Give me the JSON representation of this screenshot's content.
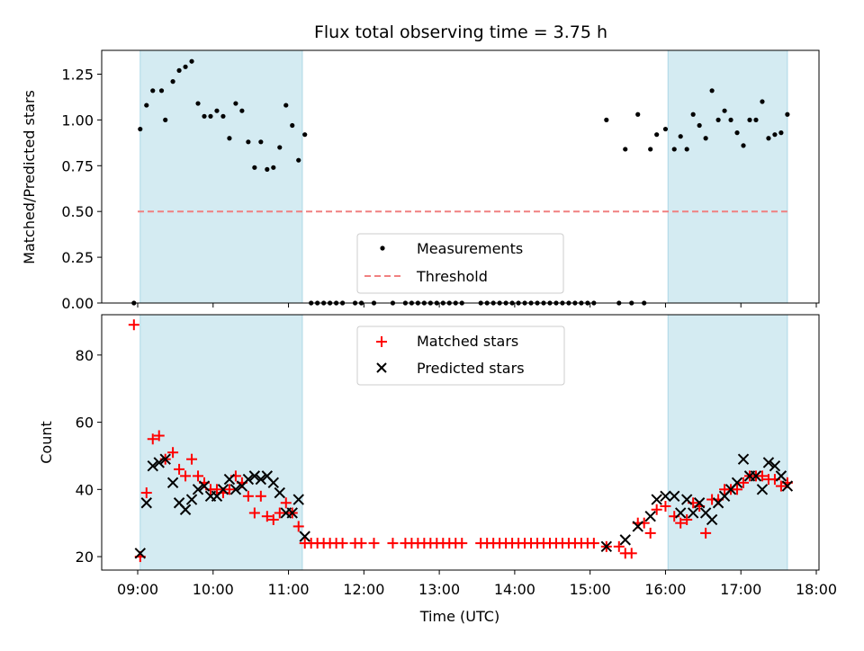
{
  "chart_data": [
    {
      "type": "scatter",
      "title": "Flux total observing time = 3.75 h",
      "ylabel": "Matched/Predicted stars",
      "xlabel": "",
      "xlim": [
        "08:45",
        "18:00"
      ],
      "ylim": [
        0,
        1.38
      ],
      "yticks": [
        "0.00",
        "0.25",
        "0.50",
        "0.75",
        "1.00",
        "1.25"
      ],
      "shaded_intervals": [
        [
          "09:02",
          "11:11"
        ],
        [
          "16:02",
          "17:37"
        ]
      ],
      "shade_color": "#add8e6",
      "threshold": 0.5,
      "series": [
        {
          "name": "Measurements",
          "marker": "dot",
          "color": "#000000",
          "points": [
            [
              "08:57",
              0.0
            ],
            [
              "09:02",
              0.95
            ],
            [
              "09:07",
              1.08
            ],
            [
              "09:12",
              1.16
            ],
            [
              "09:19",
              1.16
            ],
            [
              "09:22",
              1.0
            ],
            [
              "09:28",
              1.21
            ],
            [
              "09:33",
              1.27
            ],
            [
              "09:38",
              1.29
            ],
            [
              "09:43",
              1.32
            ],
            [
              "09:48",
              1.09
            ],
            [
              "09:53",
              1.02
            ],
            [
              "09:58",
              1.02
            ],
            [
              "10:03",
              1.05
            ],
            [
              "10:08",
              1.02
            ],
            [
              "10:13",
              0.9
            ],
            [
              "10:18",
              1.09
            ],
            [
              "10:23",
              1.05
            ],
            [
              "10:28",
              0.88
            ],
            [
              "10:33",
              0.74
            ],
            [
              "10:38",
              0.88
            ],
            [
              "10:43",
              0.73
            ],
            [
              "10:48",
              0.74
            ],
            [
              "10:53",
              0.85
            ],
            [
              "10:58",
              1.08
            ],
            [
              "11:03",
              0.97
            ],
            [
              "11:08",
              0.78
            ],
            [
              "11:13",
              0.92
            ],
            [
              "11:18",
              0.0
            ],
            [
              "11:23",
              0.0
            ],
            [
              "11:28",
              0.0
            ],
            [
              "11:33",
              0.0
            ],
            [
              "11:38",
              0.0
            ],
            [
              "11:43",
              0.0
            ],
            [
              "11:53",
              0.0
            ],
            [
              "11:58",
              0.0
            ],
            [
              "12:08",
              0.0
            ],
            [
              "12:23",
              0.0
            ],
            [
              "12:33",
              0.0
            ],
            [
              "12:38",
              0.0
            ],
            [
              "12:43",
              0.0
            ],
            [
              "12:48",
              0.0
            ],
            [
              "12:53",
              0.0
            ],
            [
              "12:58",
              0.0
            ],
            [
              "13:03",
              0.0
            ],
            [
              "13:08",
              0.0
            ],
            [
              "13:13",
              0.0
            ],
            [
              "13:18",
              0.0
            ],
            [
              "13:33",
              0.0
            ],
            [
              "13:38",
              0.0
            ],
            [
              "13:43",
              0.0
            ],
            [
              "13:48",
              0.0
            ],
            [
              "13:53",
              0.0
            ],
            [
              "13:58",
              0.0
            ],
            [
              "14:03",
              0.0
            ],
            [
              "14:08",
              0.0
            ],
            [
              "14:13",
              0.0
            ],
            [
              "14:18",
              0.0
            ],
            [
              "14:23",
              0.0
            ],
            [
              "14:28",
              0.0
            ],
            [
              "14:33",
              0.0
            ],
            [
              "14:38",
              0.0
            ],
            [
              "14:43",
              0.0
            ],
            [
              "14:48",
              0.0
            ],
            [
              "14:53",
              0.0
            ],
            [
              "14:58",
              0.0
            ],
            [
              "15:03",
              0.0
            ],
            [
              "15:13",
              1.0
            ],
            [
              "15:23",
              0.0
            ],
            [
              "15:28",
              0.84
            ],
            [
              "15:33",
              0.0
            ],
            [
              "15:38",
              1.03
            ],
            [
              "15:43",
              0.0
            ],
            [
              "15:48",
              0.84
            ],
            [
              "15:53",
              0.92
            ],
            [
              "16:00",
              0.95
            ],
            [
              "16:07",
              0.84
            ],
            [
              "16:12",
              0.91
            ],
            [
              "16:17",
              0.84
            ],
            [
              "16:22",
              1.03
            ],
            [
              "16:27",
              0.97
            ],
            [
              "16:32",
              0.9
            ],
            [
              "16:37",
              1.16
            ],
            [
              "16:42",
              1.0
            ],
            [
              "16:47",
              1.05
            ],
            [
              "16:52",
              1.0
            ],
            [
              "16:57",
              0.93
            ],
            [
              "17:02",
              0.86
            ],
            [
              "17:07",
              1.0
            ],
            [
              "17:12",
              1.0
            ],
            [
              "17:17",
              1.1
            ],
            [
              "17:22",
              0.9
            ],
            [
              "17:27",
              0.92
            ],
            [
              "17:32",
              0.93
            ],
            [
              "17:37",
              1.03
            ]
          ]
        },
        {
          "name": "Threshold",
          "marker": "dashed-line",
          "color": "#f08080"
        }
      ],
      "legend": "lower center"
    },
    {
      "type": "scatter",
      "title": "",
      "ylabel": "Count",
      "xlabel": "Time (UTC)",
      "xlim": [
        "08:45",
        "18:00"
      ],
      "ylim": [
        16,
        92
      ],
      "yticks": [
        "20",
        "40",
        "60",
        "80"
      ],
      "xticks": [
        "09:00",
        "10:00",
        "11:00",
        "12:00",
        "13:00",
        "14:00",
        "15:00",
        "16:00",
        "17:00",
        "18:00"
      ],
      "shaded_intervals": [
        [
          "09:02",
          "11:11"
        ],
        [
          "16:02",
          "17:37"
        ]
      ],
      "shade_color": "#add8e6",
      "series": [
        {
          "name": "Matched stars",
          "marker": "plus",
          "color": "#ff0000",
          "points": [
            [
              "08:57",
              89
            ],
            [
              "09:02",
              20
            ],
            [
              "09:07",
              39
            ],
            [
              "09:12",
              55
            ],
            [
              "09:17",
              56
            ],
            [
              "09:22",
              49
            ],
            [
              "09:28",
              51
            ],
            [
              "09:33",
              46
            ],
            [
              "09:38",
              44
            ],
            [
              "09:43",
              49
            ],
            [
              "09:48",
              44
            ],
            [
              "09:53",
              42
            ],
            [
              "09:58",
              40
            ],
            [
              "10:03",
              40
            ],
            [
              "10:08",
              39
            ],
            [
              "10:13",
              40
            ],
            [
              "10:18",
              44
            ],
            [
              "10:23",
              42
            ],
            [
              "10:28",
              38
            ],
            [
              "10:33",
              33
            ],
            [
              "10:38",
              38
            ],
            [
              "10:43",
              32
            ],
            [
              "10:48",
              31
            ],
            [
              "10:53",
              33
            ],
            [
              "10:58",
              36
            ],
            [
              "11:03",
              33
            ],
            [
              "11:08",
              29
            ],
            [
              "11:13",
              24
            ],
            [
              "11:18",
              24
            ],
            [
              "11:23",
              24
            ],
            [
              "11:28",
              24
            ],
            [
              "11:33",
              24
            ],
            [
              "11:38",
              24
            ],
            [
              "11:43",
              24
            ],
            [
              "11:53",
              24
            ],
            [
              "11:58",
              24
            ],
            [
              "12:08",
              24
            ],
            [
              "12:23",
              24
            ],
            [
              "12:33",
              24
            ],
            [
              "12:38",
              24
            ],
            [
              "12:43",
              24
            ],
            [
              "12:48",
              24
            ],
            [
              "12:53",
              24
            ],
            [
              "12:58",
              24
            ],
            [
              "13:03",
              24
            ],
            [
              "13:08",
              24
            ],
            [
              "13:13",
              24
            ],
            [
              "13:18",
              24
            ],
            [
              "13:33",
              24
            ],
            [
              "13:38",
              24
            ],
            [
              "13:43",
              24
            ],
            [
              "13:48",
              24
            ],
            [
              "13:53",
              24
            ],
            [
              "13:58",
              24
            ],
            [
              "14:03",
              24
            ],
            [
              "14:08",
              24
            ],
            [
              "14:13",
              24
            ],
            [
              "14:18",
              24
            ],
            [
              "14:23",
              24
            ],
            [
              "14:28",
              24
            ],
            [
              "14:33",
              24
            ],
            [
              "14:38",
              24
            ],
            [
              "14:43",
              24
            ],
            [
              "14:48",
              24
            ],
            [
              "14:53",
              24
            ],
            [
              "14:58",
              24
            ],
            [
              "15:03",
              24
            ],
            [
              "15:13",
              23
            ],
            [
              "15:23",
              23
            ],
            [
              "15:28",
              21
            ],
            [
              "15:33",
              21
            ],
            [
              "15:38",
              30
            ],
            [
              "15:43",
              30
            ],
            [
              "15:48",
              27
            ],
            [
              "15:53",
              34
            ],
            [
              "16:00",
              35
            ],
            [
              "16:07",
              32
            ],
            [
              "16:12",
              30
            ],
            [
              "16:17",
              31
            ],
            [
              "16:22",
              36
            ],
            [
              "16:27",
              35
            ],
            [
              "16:32",
              27
            ],
            [
              "16:37",
              37
            ],
            [
              "16:42",
              37
            ],
            [
              "16:47",
              40
            ],
            [
              "16:52",
              40
            ],
            [
              "16:57",
              40
            ],
            [
              "17:02",
              42
            ],
            [
              "17:07",
              44
            ],
            [
              "17:12",
              44
            ],
            [
              "17:17",
              44
            ],
            [
              "17:22",
              43
            ],
            [
              "17:27",
              43
            ],
            [
              "17:32",
              41
            ],
            [
              "17:37",
              42
            ]
          ]
        },
        {
          "name": "Predicted stars",
          "marker": "x",
          "color": "#000000",
          "points": [
            [
              "09:02",
              21
            ],
            [
              "09:07",
              36
            ],
            [
              "09:12",
              47
            ],
            [
              "09:17",
              48
            ],
            [
              "09:22",
              49
            ],
            [
              "09:28",
              42
            ],
            [
              "09:33",
              36
            ],
            [
              "09:38",
              34
            ],
            [
              "09:43",
              37
            ],
            [
              "09:48",
              40
            ],
            [
              "09:53",
              41
            ],
            [
              "09:58",
              38
            ],
            [
              "10:03",
              38
            ],
            [
              "10:08",
              40
            ],
            [
              "10:13",
              43
            ],
            [
              "10:18",
              40
            ],
            [
              "10:23",
              41
            ],
            [
              "10:28",
              43
            ],
            [
              "10:33",
              44
            ],
            [
              "10:38",
              43
            ],
            [
              "10:43",
              44
            ],
            [
              "10:48",
              42
            ],
            [
              "10:53",
              39
            ],
            [
              "10:58",
              33
            ],
            [
              "11:03",
              33
            ],
            [
              "11:08",
              37
            ],
            [
              "11:13",
              26
            ],
            [
              "15:13",
              23
            ],
            [
              "15:28",
              25
            ],
            [
              "15:38",
              29
            ],
            [
              "15:48",
              32
            ],
            [
              "15:53",
              37
            ],
            [
              "16:00",
              38
            ],
            [
              "16:07",
              38
            ],
            [
              "16:12",
              33
            ],
            [
              "16:17",
              37
            ],
            [
              "16:22",
              33
            ],
            [
              "16:27",
              36
            ],
            [
              "16:32",
              33
            ],
            [
              "16:37",
              31
            ],
            [
              "16:42",
              36
            ],
            [
              "16:47",
              38
            ],
            [
              "16:52",
              40
            ],
            [
              "16:57",
              42
            ],
            [
              "17:02",
              49
            ],
            [
              "17:07",
              44
            ],
            [
              "17:12",
              44
            ],
            [
              "17:17",
              40
            ],
            [
              "17:22",
              48
            ],
            [
              "17:27",
              47
            ],
            [
              "17:32",
              44
            ],
            [
              "17:37",
              41
            ]
          ]
        }
      ],
      "legend": "upper center"
    }
  ]
}
